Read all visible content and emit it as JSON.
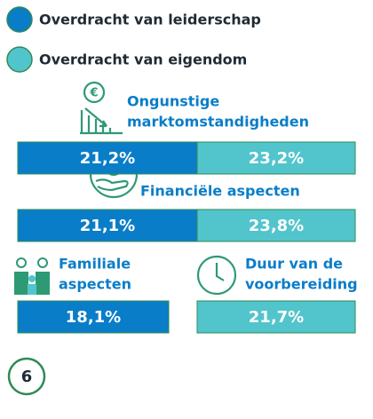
{
  "legend": [
    {
      "label": "Overdracht van leiderschap",
      "color": "#0a7dc8"
    },
    {
      "label": "Overdracht van eigendom",
      "color": "#52c4cc"
    }
  ],
  "groups": [
    {
      "label_lines": [
        "Ongunstige",
        "marktomstandigheden"
      ],
      "values": [
        21.2,
        23.2
      ],
      "value_labels": [
        "21,2%",
        "23,2%"
      ]
    },
    {
      "label_lines": [
        "Financiële aspecten"
      ],
      "values": [
        21.1,
        23.8
      ],
      "value_labels": [
        "21,1%",
        "23,8%"
      ]
    },
    {
      "label_lines": [
        "Familiale",
        "aspecten"
      ],
      "values": [
        18.1,
        null
      ],
      "value_labels": [
        "18,1%",
        null
      ]
    },
    {
      "label_lines": [
        "Duur van de",
        "voorbereiding"
      ],
      "values": [
        null,
        21.7
      ],
      "value_labels": [
        null,
        "21,7%"
      ]
    }
  ],
  "page_number": "6"
}
